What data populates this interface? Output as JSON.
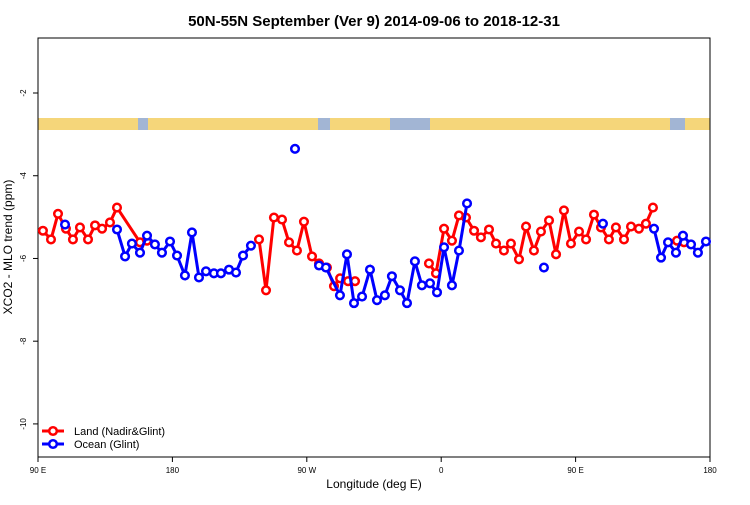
{
  "chart_data": {
    "type": "line",
    "title": "50N-55N September (Ver 9)   2014-09-06 to 2018-12-31",
    "x_label": "Longitude (deg E)",
    "y_label": "XCO2 - MLO trend (ppm)",
    "xlim": [
      90,
      540
    ],
    "xticks": [
      {
        "value": 90,
        "label": "90 E"
      },
      180,
      {
        "value": 270,
        "label": "90 W"
      },
      {
        "value": 360,
        "label": "0"
      },
      {
        "value": 450,
        "label": "90 E"
      },
      {
        "value": 540,
        "label": "180"
      }
    ],
    "ylim": [
      -10.8,
      -0.67
    ],
    "yticks": [
      -10,
      -8,
      -6,
      -4,
      -2
    ],
    "legend": "bottomleft",
    "series": [
      {
        "name": "Land (Nadir&Glint)",
        "color": "#ff0000",
        "x": [
          93.3,
          98.7,
          103.4,
          108.7,
          113.4,
          118.1,
          123.5,
          128.2,
          132.9,
          138.2,
          142.9,
          158.3,
          163.0,
          200,
          238.0,
          242.7,
          248.0,
          253.4,
          258.1,
          263.4,
          268.1,
          273.5,
          278.2,
          283.5,
          288.2,
          292.3,
          297.6,
          302.3,
          330,
          351.8,
          356.5,
          361.9,
          367.2,
          371.9,
          376.6,
          382.0,
          386.6,
          392.0,
          396.7,
          402.0,
          406.7,
          412.1,
          416.8,
          422.1,
          426.8,
          432.2,
          436.9,
          442.2,
          446.9,
          452.3,
          457.0,
          462.3,
          467.0,
          472.3,
          477.0,
          482.4,
          487.1,
          492.4,
          497.1,
          501.8,
          510,
          517.9,
          522.6
        ],
        "values": [
          -5.33,
          -5.54,
          -4.92,
          -5.28,
          -5.54,
          -5.25,
          -5.54,
          -5.2,
          -5.28,
          -5.13,
          -4.77,
          -5.61,
          -5.57,
          null,
          -5.54,
          -6.77,
          -5.01,
          -5.06,
          -5.61,
          -5.81,
          -5.11,
          -5.95,
          -6.12,
          -6.22,
          -6.67,
          -6.48,
          -6.55,
          -6.55,
          null,
          -6.12,
          -6.36,
          -5.28,
          -5.57,
          -4.96,
          -5.01,
          -5.33,
          -5.49,
          -5.3,
          -5.64,
          -5.81,
          -5.64,
          -6.02,
          -5.23,
          -5.81,
          -5.35,
          -5.08,
          -5.9,
          -4.84,
          -5.64,
          -5.35,
          -5.54,
          -4.94,
          -5.25,
          -5.54,
          -5.25,
          -5.54,
          -5.23,
          -5.28,
          -5.16,
          -4.77,
          null,
          -5.57,
          -5.61
        ]
      },
      {
        "name": "Ocean (Glint)",
        "color": "#0000ff",
        "x": [
          108.1,
          112,
          142.9,
          148.3,
          152.9,
          158.3,
          163.0,
          168.3,
          173.0,
          178.4,
          183.1,
          188.4,
          193.1,
          197.8,
          202.5,
          207.8,
          212.5,
          217.9,
          222.6,
          227.3,
          232.6,
          240,
          262.1,
          270,
          278.2,
          282.8,
          292.2,
          296.9,
          301.6,
          307.0,
          312.3,
          317.0,
          322.3,
          327.0,
          332.4,
          337.1,
          342.4,
          347.1,
          352.5,
          357.2,
          361.9,
          367.2,
          371.9,
          377.3,
          400,
          428.8,
          440,
          468.3,
          480,
          502.5,
          507.2,
          511.9,
          517.2,
          521.9,
          527.3,
          531.9,
          537.3
        ],
        "values": [
          -5.18,
          null,
          -5.3,
          -5.95,
          -5.64,
          -5.86,
          -5.45,
          -5.66,
          -5.86,
          -5.59,
          -5.93,
          -6.41,
          -5.37,
          -6.46,
          -6.31,
          -6.36,
          -6.36,
          -6.27,
          -6.34,
          -5.93,
          -5.69,
          null,
          -3.35,
          null,
          -6.17,
          -6.22,
          -6.89,
          -5.9,
          -7.08,
          -6.92,
          -6.27,
          -7.01,
          -6.89,
          -6.43,
          -6.77,
          -7.08,
          -6.07,
          -6.65,
          -6.6,
          -6.82,
          -5.73,
          -6.65,
          -5.81,
          -4.67,
          null,
          -6.22,
          null,
          -5.16,
          null,
          -5.28,
          -5.98,
          -5.61,
          -5.86,
          -5.45,
          -5.66,
          -5.86,
          -5.59
        ]
      }
    ]
  }
}
